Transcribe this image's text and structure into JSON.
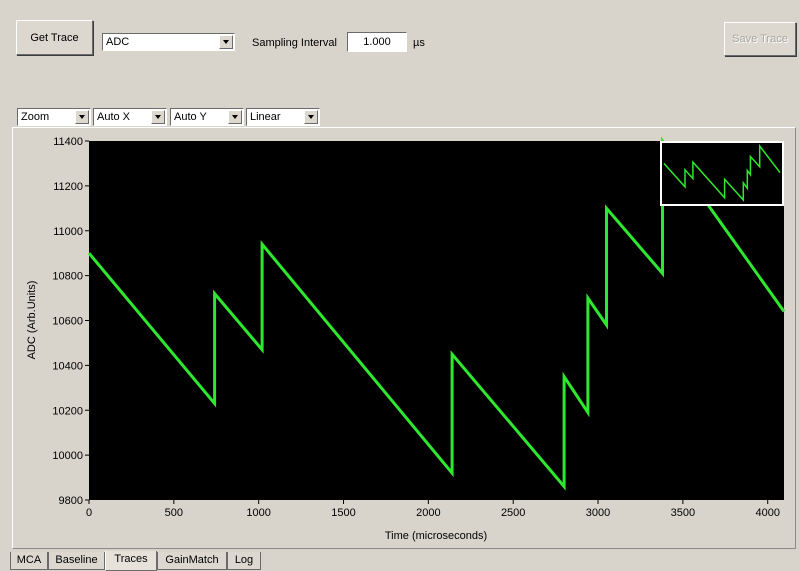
{
  "toolbar": {
    "get_trace_label": "Get Trace",
    "source_value": "ADC",
    "sampling_label": "Sampling Interval",
    "sampling_value": "1.000",
    "sampling_unit": "µs",
    "save_trace_label": "Save Trace"
  },
  "plot_controls": {
    "zoom": "Zoom",
    "x_mode": "Auto X",
    "y_mode": "Auto Y",
    "scale": "Linear"
  },
  "tabs": [
    "MCA",
    "Baseline",
    "Traces",
    "GainMatch",
    "Log"
  ],
  "active_tab": "Traces",
  "colors": {
    "trace": "#2ee82e",
    "plot_bg": "#000000",
    "window_bg": "#d8d4cb"
  },
  "chart_data": {
    "type": "line",
    "xlabel": "Time (microseconds)",
    "ylabel": "ADC (Arb.Units)",
    "xlim": [
      0,
      4096
    ],
    "ylim": [
      9800,
      11400
    ],
    "xticks": [
      0,
      500,
      1000,
      1500,
      2000,
      2500,
      3000,
      3500,
      4000
    ],
    "yticks": [
      9800,
      10000,
      10200,
      10400,
      10600,
      10800,
      11000,
      11200,
      11400
    ],
    "grid": false,
    "series": [
      {
        "x": [
          0,
          740,
          740,
          1020,
          1020,
          2140,
          2140,
          2800,
          2800,
          2940,
          2940,
          3050,
          3050,
          3380,
          3380,
          4096
        ],
        "values": [
          10900,
          10230,
          10720,
          10470,
          10940,
          9920,
          10450,
          9860,
          10350,
          10190,
          10700,
          10580,
          11100,
          10810,
          11400,
          10640
        ]
      }
    ],
    "inset": {
      "type": "line",
      "description_hidden": true
    }
  }
}
